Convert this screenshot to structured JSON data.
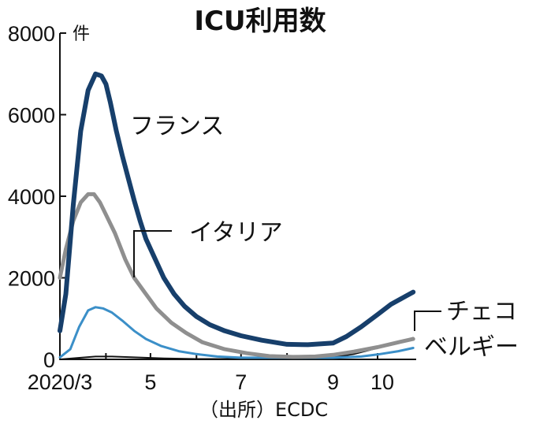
{
  "chart_data": {
    "type": "line",
    "title": "ICU利用数",
    "ylabel": "件",
    "ylim": [
      0,
      8000
    ],
    "yticks": [
      "8000",
      "6000",
      "4000",
      "2000",
      "0"
    ],
    "xticks": [
      "2020/3",
      "5",
      "7",
      "9",
      "10"
    ],
    "source": "（出所）ECDC",
    "grid": false,
    "series": [
      {
        "name": "フランス",
        "color": "#173f6b",
        "points": [
          [
            "2020-03-01",
            700
          ],
          [
            "2020-03-05",
            1600
          ],
          [
            "2020-03-10",
            3800
          ],
          [
            "2020-03-15",
            5600
          ],
          [
            "2020-03-20",
            6600
          ],
          [
            "2020-03-25",
            7000
          ],
          [
            "2020-03-29",
            6950
          ],
          [
            "2020-04-01",
            6750
          ],
          [
            "2020-04-04",
            6300
          ],
          [
            "2020-04-08",
            5600
          ],
          [
            "2020-04-12",
            5000
          ],
          [
            "2020-04-16",
            4450
          ],
          [
            "2020-04-20",
            3900
          ],
          [
            "2020-04-24",
            3400
          ],
          [
            "2020-04-28",
            2950
          ],
          [
            "2020-05-03",
            2550
          ],
          [
            "2020-05-10",
            2000
          ],
          [
            "2020-05-17",
            1600
          ],
          [
            "2020-05-24",
            1300
          ],
          [
            "2020-06-01",
            1050
          ],
          [
            "2020-06-10",
            850
          ],
          [
            "2020-06-20",
            700
          ],
          [
            "2020-07-01",
            580
          ],
          [
            "2020-07-15",
            470
          ],
          [
            "2020-08-01",
            370
          ],
          [
            "2020-08-15",
            360
          ],
          [
            "2020-09-01",
            400
          ],
          [
            "2020-09-10",
            560
          ],
          [
            "2020-09-20",
            800
          ],
          [
            "2020-10-01",
            1100
          ],
          [
            "2020-10-10",
            1350
          ],
          [
            "2020-10-20",
            1550
          ],
          [
            "2020-10-25",
            1650
          ]
        ]
      },
      {
        "name": "イタリア",
        "color": "#8f8f8f",
        "points": [
          [
            "2020-03-01",
            2000
          ],
          [
            "2020-03-05",
            2700
          ],
          [
            "2020-03-10",
            3400
          ],
          [
            "2020-03-15",
            3850
          ],
          [
            "2020-03-20",
            4050
          ],
          [
            "2020-03-24",
            4050
          ],
          [
            "2020-03-28",
            3850
          ],
          [
            "2020-04-01",
            3550
          ],
          [
            "2020-04-07",
            3100
          ],
          [
            "2020-04-14",
            2450
          ],
          [
            "2020-04-20",
            2000
          ],
          [
            "2020-04-27",
            1650
          ],
          [
            "2020-05-05",
            1250
          ],
          [
            "2020-05-15",
            900
          ],
          [
            "2020-05-25",
            650
          ],
          [
            "2020-06-05",
            420
          ],
          [
            "2020-06-20",
            250
          ],
          [
            "2020-07-05",
            150
          ],
          [
            "2020-07-20",
            80
          ],
          [
            "2020-08-05",
            60
          ],
          [
            "2020-08-20",
            70
          ],
          [
            "2020-09-01",
            110
          ],
          [
            "2020-09-15",
            190
          ],
          [
            "2020-10-01",
            300
          ],
          [
            "2020-10-15",
            420
          ],
          [
            "2020-10-25",
            500
          ]
        ]
      },
      {
        "name": "ベルギー",
        "color": "#3b8fc8",
        "points": [
          [
            "2020-03-01",
            50
          ],
          [
            "2020-03-08",
            250
          ],
          [
            "2020-03-14",
            800
          ],
          [
            "2020-03-20",
            1200
          ],
          [
            "2020-03-25",
            1280
          ],
          [
            "2020-03-30",
            1250
          ],
          [
            "2020-04-05",
            1150
          ],
          [
            "2020-04-12",
            950
          ],
          [
            "2020-04-20",
            700
          ],
          [
            "2020-04-28",
            500
          ],
          [
            "2020-05-08",
            330
          ],
          [
            "2020-05-20",
            200
          ],
          [
            "2020-06-01",
            130
          ],
          [
            "2020-06-15",
            70
          ],
          [
            "2020-07-01",
            40
          ],
          [
            "2020-08-01",
            40
          ],
          [
            "2020-09-01",
            40
          ],
          [
            "2020-09-20",
            70
          ],
          [
            "2020-10-01",
            120
          ],
          [
            "2020-10-15",
            200
          ],
          [
            "2020-10-25",
            280
          ]
        ]
      },
      {
        "name": "チェコ",
        "color": "#111111",
        "points": [
          [
            "2020-03-01",
            0
          ],
          [
            "2020-03-15",
            40
          ],
          [
            "2020-03-25",
            70
          ],
          [
            "2020-04-05",
            70
          ],
          [
            "2020-04-20",
            50
          ],
          [
            "2020-05-10",
            25
          ],
          [
            "2020-06-01",
            10
          ],
          [
            "2020-07-01",
            10
          ],
          [
            "2020-08-01",
            20
          ],
          [
            "2020-09-01",
            50
          ],
          [
            "2020-09-15",
            130
          ],
          [
            "2020-10-01",
            280
          ],
          [
            "2020-10-15",
            430
          ],
          [
            "2020-10-25",
            530
          ]
        ]
      }
    ]
  }
}
